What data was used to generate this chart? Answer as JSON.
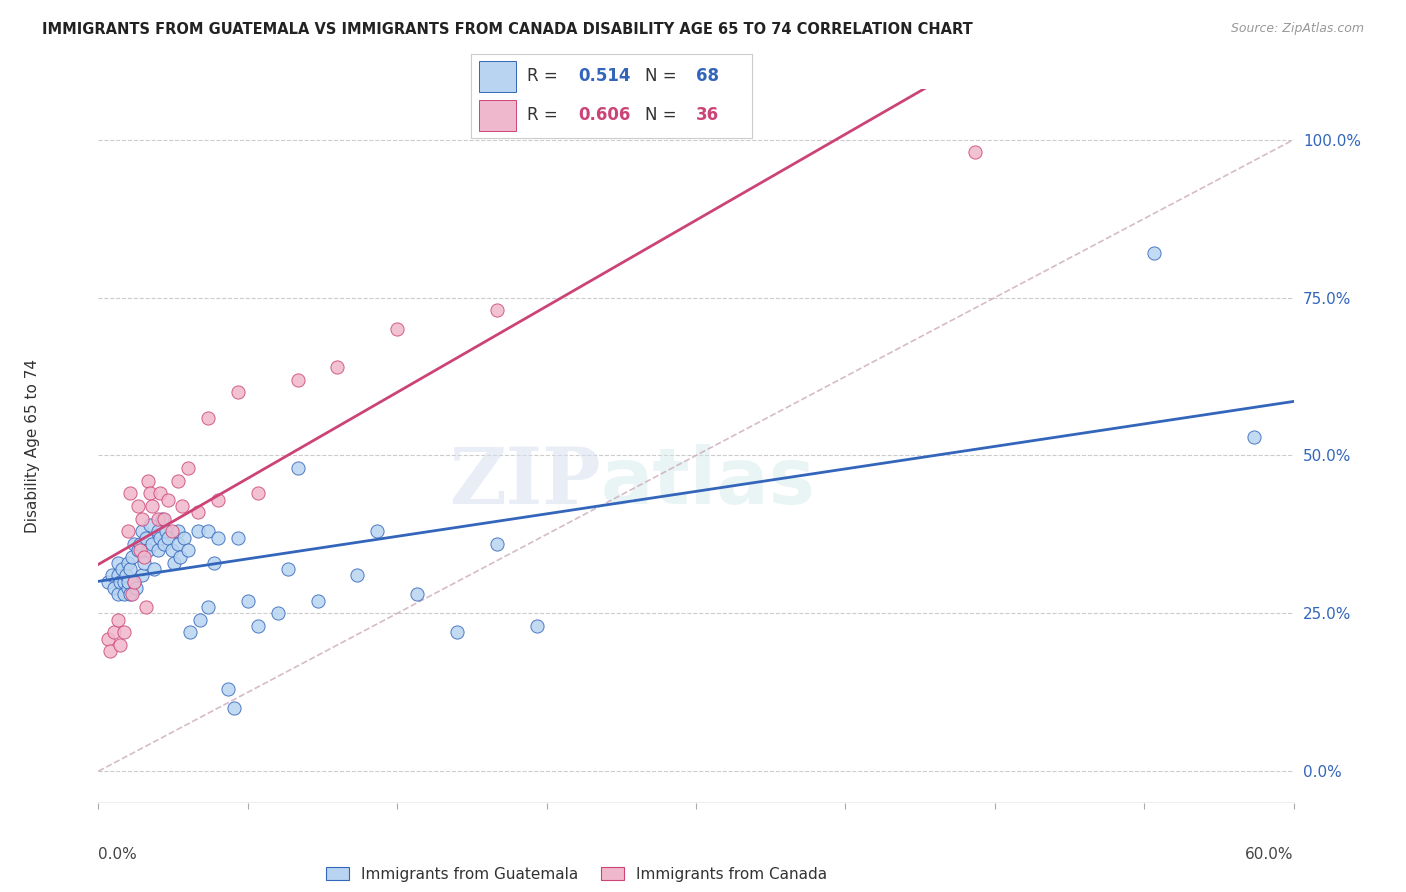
{
  "title": "IMMIGRANTS FROM GUATEMALA VS IMMIGRANTS FROM CANADA DISABILITY AGE 65 TO 74 CORRELATION CHART",
  "source": "Source: ZipAtlas.com",
  "ylabel": "Disability Age 65 to 74",
  "ylabel_right_ticks": [
    "0.0%",
    "25.0%",
    "50.0%",
    "75.0%",
    "100.0%"
  ],
  "ylabel_right_vals": [
    0.0,
    0.25,
    0.5,
    0.75,
    1.0
  ],
  "xlim": [
    0.0,
    0.6
  ],
  "ylim": [
    -0.05,
    1.08
  ],
  "legend_R1": "0.514",
  "legend_N1": "68",
  "legend_R2": "0.606",
  "legend_N2": "36",
  "watermark_zip": "ZIP",
  "watermark_atlas": "atlas",
  "color_blue": "#b8d4f0",
  "color_pink": "#f0b8cc",
  "line_blue": "#3366bb",
  "line_pink": "#cc4477",
  "line_diagonal_color": "#ccaabb",
  "guatemala_x": [
    0.005,
    0.007,
    0.008,
    0.01,
    0.01,
    0.01,
    0.011,
    0.012,
    0.013,
    0.013,
    0.014,
    0.015,
    0.015,
    0.015,
    0.016,
    0.016,
    0.017,
    0.018,
    0.018,
    0.019,
    0.02,
    0.021,
    0.022,
    0.022,
    0.023,
    0.024,
    0.025,
    0.026,
    0.027,
    0.028,
    0.03,
    0.03,
    0.031,
    0.032,
    0.033,
    0.034,
    0.035,
    0.037,
    0.038,
    0.04,
    0.04,
    0.041,
    0.043,
    0.045,
    0.046,
    0.05,
    0.051,
    0.055,
    0.055,
    0.058,
    0.06,
    0.065,
    0.068,
    0.07,
    0.075,
    0.08,
    0.09,
    0.095,
    0.1,
    0.11,
    0.13,
    0.14,
    0.16,
    0.18,
    0.2,
    0.22,
    0.53,
    0.58
  ],
  "guatemala_y": [
    0.3,
    0.31,
    0.29,
    0.31,
    0.33,
    0.28,
    0.3,
    0.32,
    0.28,
    0.3,
    0.31,
    0.29,
    0.33,
    0.3,
    0.32,
    0.28,
    0.34,
    0.36,
    0.3,
    0.29,
    0.35,
    0.36,
    0.38,
    0.31,
    0.33,
    0.37,
    0.35,
    0.39,
    0.36,
    0.32,
    0.38,
    0.35,
    0.37,
    0.4,
    0.36,
    0.38,
    0.37,
    0.35,
    0.33,
    0.38,
    0.36,
    0.34,
    0.37,
    0.35,
    0.22,
    0.38,
    0.24,
    0.38,
    0.26,
    0.33,
    0.37,
    0.13,
    0.1,
    0.37,
    0.27,
    0.23,
    0.25,
    0.32,
    0.48,
    0.27,
    0.31,
    0.38,
    0.28,
    0.22,
    0.36,
    0.23,
    0.82,
    0.53
  ],
  "canada_x": [
    0.005,
    0.006,
    0.008,
    0.01,
    0.011,
    0.013,
    0.015,
    0.016,
    0.017,
    0.018,
    0.02,
    0.021,
    0.022,
    0.023,
    0.024,
    0.025,
    0.026,
    0.027,
    0.03,
    0.031,
    0.033,
    0.035,
    0.037,
    0.04,
    0.042,
    0.045,
    0.05,
    0.055,
    0.06,
    0.07,
    0.08,
    0.1,
    0.12,
    0.15,
    0.2,
    0.44
  ],
  "canada_y": [
    0.21,
    0.19,
    0.22,
    0.24,
    0.2,
    0.22,
    0.38,
    0.44,
    0.28,
    0.3,
    0.42,
    0.35,
    0.4,
    0.34,
    0.26,
    0.46,
    0.44,
    0.42,
    0.4,
    0.44,
    0.4,
    0.43,
    0.38,
    0.46,
    0.42,
    0.48,
    0.41,
    0.56,
    0.43,
    0.6,
    0.44,
    0.62,
    0.64,
    0.7,
    0.73,
    0.98
  ]
}
